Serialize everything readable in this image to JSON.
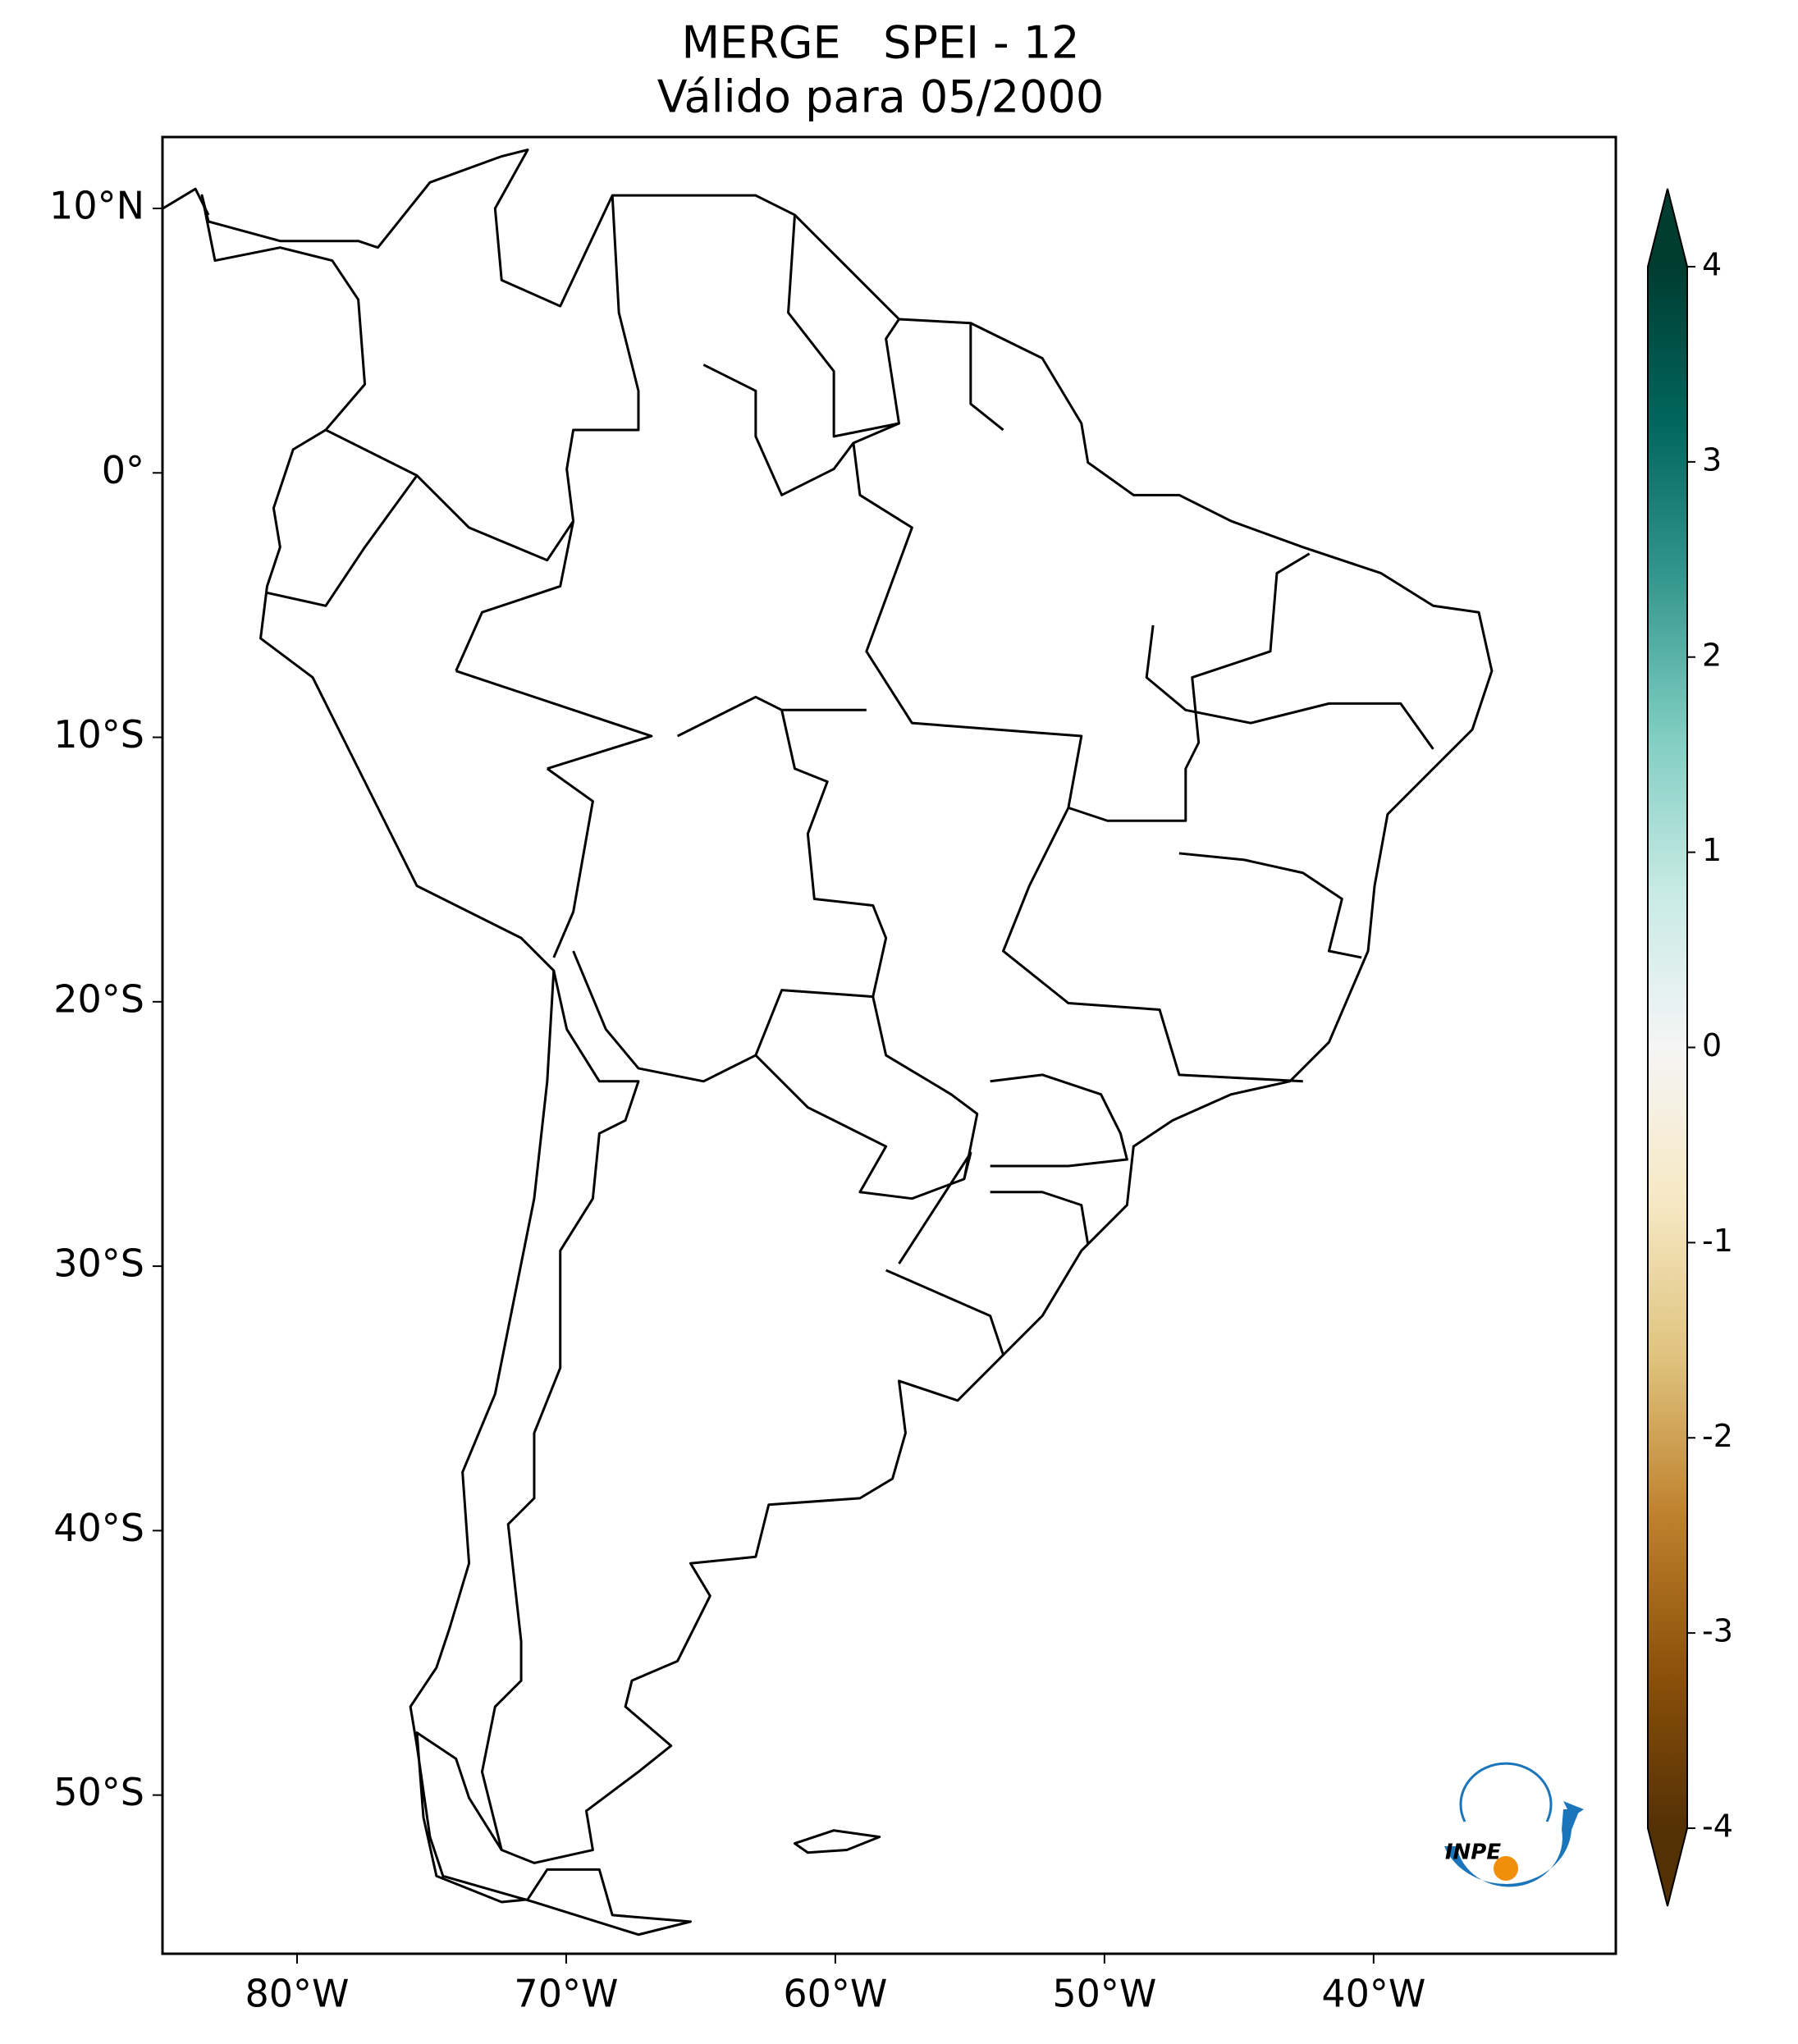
{
  "chart_data": {
    "type": "map",
    "title": "MERGE   SPEI - 12",
    "subtitle": "Válido para 05/2000",
    "xlim": [
      -85,
      -31
    ],
    "ylim": [
      -56,
      12.7
    ],
    "xticks": [
      {
        "value": -80,
        "label": "80°W"
      },
      {
        "value": -70,
        "label": "70°W"
      },
      {
        "value": -60,
        "label": "60°W"
      },
      {
        "value": -50,
        "label": "50°W"
      },
      {
        "value": -40,
        "label": "40°W"
      }
    ],
    "yticks": [
      {
        "value": 10,
        "label": "10°N"
      },
      {
        "value": 0,
        "label": "0°"
      },
      {
        "value": -10,
        "label": "10°S"
      },
      {
        "value": -20,
        "label": "20°S"
      },
      {
        "value": -30,
        "label": "30°S"
      },
      {
        "value": -40,
        "label": "40°S"
      },
      {
        "value": -50,
        "label": "50°S"
      }
    ],
    "colorbar": {
      "lim": [
        -4,
        4
      ],
      "ticks": [
        4,
        3,
        2,
        1,
        0,
        -1,
        -2,
        -3,
        -4
      ],
      "colors": [
        "#543005",
        "#8c510a",
        "#bf812d",
        "#dfc27d",
        "#f6e8c3",
        "#f5f5f5",
        "#c7eae5",
        "#80cdc1",
        "#35978f",
        "#01665e",
        "#003c30"
      ],
      "extend": "both"
    },
    "logo_text": "INPE"
  }
}
